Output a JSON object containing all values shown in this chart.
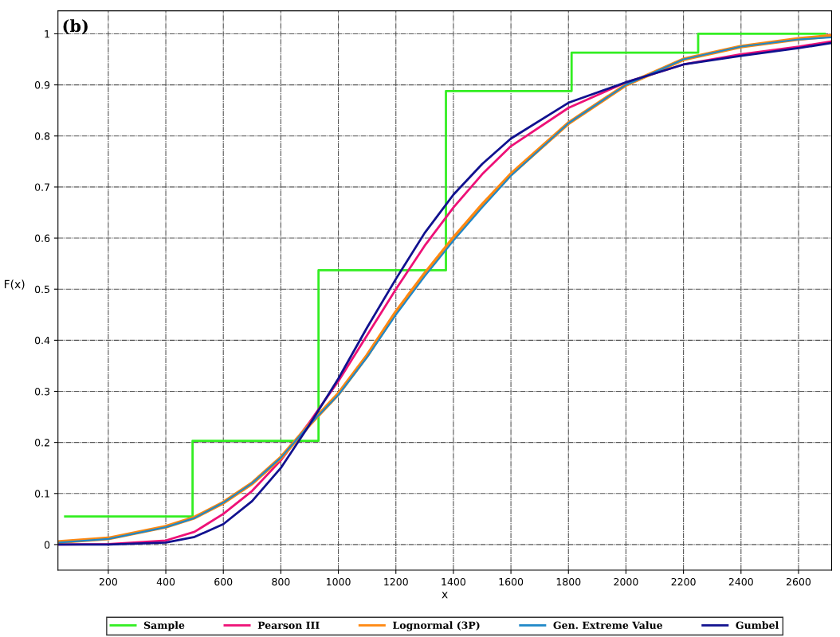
{
  "chart_data": {
    "type": "line",
    "title": "(b)",
    "xlabel": "x",
    "ylabel": "F(x)",
    "xlim": [
      25,
      2715
    ],
    "ylim": [
      -0.05,
      1.045
    ],
    "xticks": [
      200,
      400,
      600,
      800,
      1000,
      1200,
      1400,
      1600,
      1800,
      2000,
      2200,
      2400,
      2600
    ],
    "yticks": [
      0,
      0.1,
      0.2,
      0.3,
      0.4,
      0.5,
      0.6,
      0.7,
      0.8,
      0.9,
      1
    ],
    "grid": true,
    "legend": "bottom",
    "marker": "none",
    "line_style": "solid",
    "x": [
      30,
      200,
      400,
      500,
      600,
      700,
      800,
      900,
      1000,
      1100,
      1200,
      1300,
      1400,
      1500,
      1600,
      1800,
      2000,
      2200,
      2400,
      2600,
      2715
    ],
    "series": [
      {
        "name": "Sample",
        "type": "step",
        "color": "#33ee22",
        "x": [
          50,
          493,
          931,
          1374,
          1811,
          2251,
          2691
        ],
        "values": [
          0.055,
          0.203,
          0.537,
          0.888,
          0.963,
          1.0,
          1.0
        ]
      },
      {
        "name": "Pearson III",
        "color": "#ee1177",
        "values": [
          0,
          0.001,
          0.008,
          0.025,
          0.06,
          0.105,
          0.165,
          0.24,
          0.32,
          0.41,
          0.5,
          0.585,
          0.66,
          0.725,
          0.78,
          0.855,
          0.905,
          0.94,
          0.96,
          0.975,
          0.985
        ]
      },
      {
        "name": "Lognormal (3P)",
        "color": "#ff8811",
        "values": [
          0.005,
          0.012,
          0.035,
          0.053,
          0.082,
          0.12,
          0.17,
          0.235,
          0.295,
          0.37,
          0.455,
          0.53,
          0.6,
          0.665,
          0.725,
          0.825,
          0.9,
          0.95,
          0.975,
          0.99,
          0.996
        ]
      },
      {
        "name": "Gen. Extreme Value",
        "color": "#1f88c8",
        "values": [
          0.004,
          0.011,
          0.034,
          0.052,
          0.082,
          0.12,
          0.17,
          0.235,
          0.293,
          0.367,
          0.45,
          0.525,
          0.595,
          0.66,
          0.722,
          0.825,
          0.9,
          0.95,
          0.975,
          0.989,
          0.993
        ]
      },
      {
        "name": "Gumbel",
        "color": "#11118f",
        "values": [
          0,
          0,
          0.004,
          0.015,
          0.04,
          0.085,
          0.15,
          0.235,
          0.325,
          0.425,
          0.52,
          0.61,
          0.685,
          0.745,
          0.795,
          0.865,
          0.905,
          0.94,
          0.957,
          0.972,
          0.982
        ]
      }
    ]
  }
}
